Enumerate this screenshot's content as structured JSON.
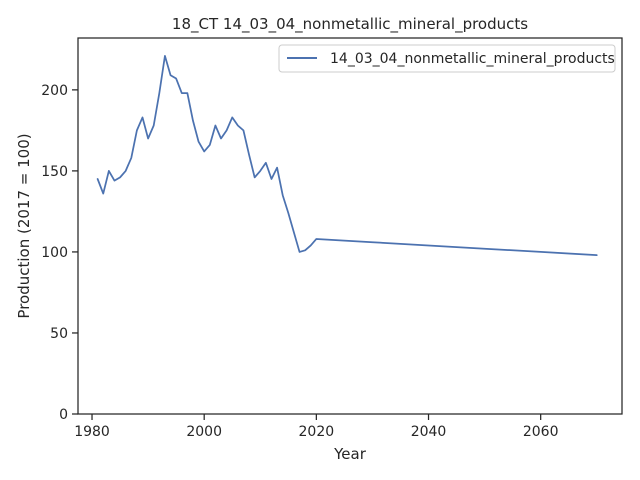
{
  "chart_data": {
    "type": "line",
    "title": "18_CT 14_03_04_nonmetallic_mineral_products",
    "xlabel": "Year",
    "ylabel": "Production (2017 = 100)",
    "xlim": [
      1977.5,
      2074.5
    ],
    "ylim": [
      0,
      232
    ],
    "xticks": [
      1980,
      2000,
      2020,
      2040,
      2060
    ],
    "yticks": [
      0,
      50,
      100,
      150,
      200
    ],
    "grid": false,
    "legend": "top-right",
    "colors": {
      "line": "#4c72b0",
      "axis": "#262626"
    },
    "series": [
      {
        "name": "14_03_04_nonmetallic_mineral_products",
        "x": [
          1981,
          1982,
          1983,
          1984,
          1985,
          1986,
          1987,
          1988,
          1989,
          1990,
          1991,
          1992,
          1993,
          1994,
          1995,
          1996,
          1997,
          1998,
          1999,
          2000,
          2001,
          2002,
          2003,
          2004,
          2005,
          2006,
          2007,
          2008,
          2009,
          2010,
          2011,
          2012,
          2013,
          2014,
          2015,
          2016,
          2017,
          2018,
          2019,
          2020,
          2030,
          2040,
          2050,
          2060,
          2070
        ],
        "y": [
          145,
          136,
          150,
          144,
          146,
          150,
          158,
          175,
          183,
          170,
          178,
          198,
          221,
          209,
          207,
          198,
          198,
          181,
          168,
          162,
          166,
          178,
          170,
          175,
          183,
          178,
          175,
          160,
          146,
          150,
          155,
          145,
          152,
          135,
          124,
          112,
          100,
          101,
          104,
          108,
          106,
          104,
          102,
          100,
          98
        ]
      }
    ]
  }
}
